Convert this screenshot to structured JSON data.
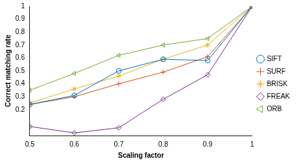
{
  "chart_data": {
    "type": "line",
    "x_label": "Scaling factor",
    "y_label": "Correct matching rate",
    "x": [
      0.5,
      0.6,
      0.7,
      0.8,
      0.9,
      1
    ],
    "xlim": [
      0.5,
      1
    ],
    "xticks": [
      0.5,
      0.6,
      0.7,
      0.8,
      0.9,
      1
    ],
    "ylim": [
      0,
      1
    ],
    "yticks": [
      0.2,
      0.3,
      0.4,
      0.5,
      0.6,
      0.7,
      0.8,
      0.9,
      1
    ],
    "grid": false,
    "legend": "right",
    "series": [
      {
        "name": "SIFT",
        "color": "#0072bd",
        "marker": "circle",
        "values": [
          0.24,
          0.31,
          0.5,
          0.59,
          0.58,
          1
        ]
      },
      {
        "name": "SURF",
        "color": "#d95319",
        "marker": "plus",
        "values": [
          0.24,
          0.3,
          0.4,
          0.49,
          0.61,
          1
        ]
      },
      {
        "name": "BRISK",
        "color": "#edb120",
        "marker": "star",
        "values": [
          0.25,
          0.36,
          0.46,
          0.59,
          0.7,
          1
        ]
      },
      {
        "name": "FREAK",
        "color": "#7e2f8e",
        "marker": "diamond",
        "values": [
          0.07,
          0.02,
          0.06,
          0.28,
          0.47,
          1
        ]
      },
      {
        "name": "ORB",
        "color": "#77ac30",
        "marker": "triangle-left",
        "values": [
          0.35,
          0.48,
          0.62,
          0.7,
          0.75,
          1
        ]
      }
    ]
  }
}
